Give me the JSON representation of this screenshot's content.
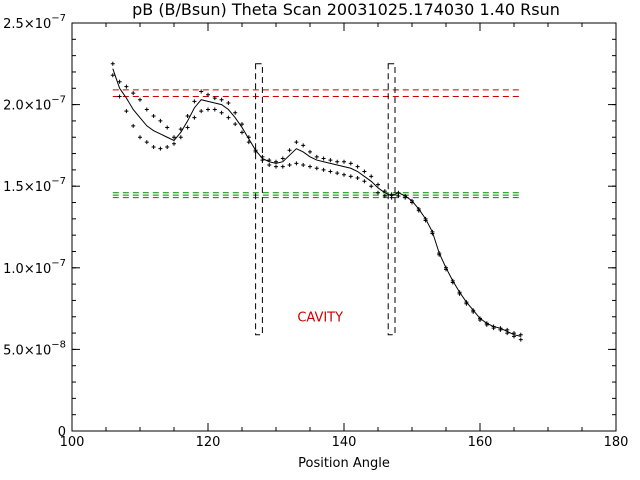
{
  "chart_data": {
    "type": "scatter",
    "title": "pB (B/Bsun) Theta Scan 20031025.174030 1.40 Rsun",
    "xlabel": "Position Angle",
    "ylabel": "",
    "xlim": [
      100,
      180
    ],
    "ylim": [
      0,
      2.5e-07
    ],
    "grid": false,
    "x_ticks": [
      {
        "value": 100,
        "label": "100"
      },
      {
        "value": 120,
        "label": "120"
      },
      {
        "value": 140,
        "label": "140"
      },
      {
        "value": 160,
        "label": "160"
      },
      {
        "value": 180,
        "label": "180"
      }
    ],
    "y_ticks": [
      {
        "value": 0,
        "label": "0"
      },
      {
        "value": 5e-08,
        "label": "5.0×10",
        "exp": "−8"
      },
      {
        "value": 1e-07,
        "label": "1.0×10",
        "exp": "−7"
      },
      {
        "value": 1.5e-07,
        "label": "1.5×10",
        "exp": "−7"
      },
      {
        "value": 2e-07,
        "label": "2.0×10",
        "exp": "−7"
      },
      {
        "value": 2.5e-07,
        "label": "2.5×10",
        "exp": "−7"
      }
    ],
    "series": [
      {
        "style": "points",
        "color": "#000000",
        "x": [
          106,
          107,
          108,
          109,
          110,
          111,
          112,
          113,
          114,
          115,
          116,
          117,
          118,
          119,
          120,
          121,
          122,
          123,
          124,
          125,
          126,
          127,
          128,
          129,
          130,
          131,
          132,
          133,
          134,
          135,
          136,
          137,
          138,
          139,
          140,
          141,
          142,
          143,
          144,
          145,
          146,
          147,
          148,
          149,
          150,
          151,
          152,
          153,
          154,
          155,
          156,
          157,
          158,
          159,
          160,
          161,
          162,
          163,
          164,
          165,
          166
        ],
        "y": [
          2.25e-07,
          2.14e-07,
          2.11e-07,
          2.07e-07,
          2.03e-07,
          1.97e-07,
          1.93e-07,
          1.9e-07,
          1.86e-07,
          1.8e-07,
          1.85e-07,
          1.93e-07,
          2.02e-07,
          2.08e-07,
          2.06e-07,
          2.04e-07,
          2.03e-07,
          2.01e-07,
          1.95e-07,
          1.88e-07,
          1.8e-07,
          1.72e-07,
          1.68e-07,
          1.66e-07,
          1.65e-07,
          1.67e-07,
          1.72e-07,
          1.77e-07,
          1.75e-07,
          1.71e-07,
          1.68e-07,
          1.67e-07,
          1.66e-07,
          1.65e-07,
          1.65e-07,
          1.64e-07,
          1.62e-07,
          1.59e-07,
          1.56e-07,
          1.51e-07,
          1.47e-07,
          1.45e-07,
          1.46e-07,
          1.44e-07,
          1.41e-07,
          1.36e-07,
          1.3e-07,
          1.22e-07,
          1.09e-07,
          1e-07,
          9.2e-08,
          8.5e-08,
          7.9e-08,
          7.4e-08,
          6.9e-08,
          6.6e-08,
          6.4e-08,
          6.3e-08,
          6.2e-08,
          6e-08,
          5.9e-08
        ]
      },
      {
        "style": "points",
        "color": "#000000",
        "x": [
          106,
          107,
          108,
          109,
          110,
          111,
          112,
          113,
          114,
          115,
          116,
          117,
          118,
          119,
          120,
          121,
          122,
          123,
          124,
          125,
          126,
          127,
          128,
          129,
          130,
          131,
          132,
          133,
          134,
          135,
          136,
          137,
          138,
          139,
          140,
          141,
          142,
          143,
          144,
          145,
          146,
          147,
          148,
          149,
          150,
          151,
          152,
          153,
          154,
          155,
          156,
          157,
          158,
          159,
          160,
          161,
          162,
          163,
          164,
          165,
          166
        ],
        "y": [
          2.18e-07,
          2.05e-07,
          1.96e-07,
          1.87e-07,
          1.8e-07,
          1.77e-07,
          1.74e-07,
          1.73e-07,
          1.74e-07,
          1.76e-07,
          1.8e-07,
          1.86e-07,
          1.92e-07,
          1.96e-07,
          1.97e-07,
          1.97e-07,
          1.95e-07,
          1.92e-07,
          1.88e-07,
          1.83e-07,
          1.77e-07,
          1.71e-07,
          1.66e-07,
          1.63e-07,
          1.62e-07,
          1.62e-07,
          1.63e-07,
          1.64e-07,
          1.63e-07,
          1.62e-07,
          1.61e-07,
          1.6e-07,
          1.59e-07,
          1.58e-07,
          1.57e-07,
          1.56e-07,
          1.55e-07,
          1.53e-07,
          1.5e-07,
          1.46e-07,
          1.44e-07,
          1.43e-07,
          1.44e-07,
          1.43e-07,
          1.4e-07,
          1.35e-07,
          1.29e-07,
          1.21e-07,
          1.08e-07,
          9.9e-08,
          9.1e-08,
          8.4e-08,
          7.8e-08,
          7.3e-08,
          6.8e-08,
          6.5e-08,
          6.3e-08,
          6.2e-08,
          6e-08,
          5.8e-08,
          5.6e-08
        ]
      },
      {
        "style": "line",
        "color": "#000000",
        "x": [
          106,
          107,
          108,
          109,
          110,
          111,
          112,
          113,
          114,
          115,
          116,
          117,
          118,
          119,
          120,
          121,
          122,
          123,
          124,
          125,
          126,
          127,
          128,
          129,
          130,
          131,
          132,
          133,
          134,
          135,
          136,
          137,
          138,
          139,
          140,
          141,
          142,
          143,
          144,
          145,
          146,
          147,
          148,
          149,
          150,
          151,
          152,
          153,
          154,
          155,
          156,
          157,
          158,
          159,
          160,
          161,
          162,
          163,
          164,
          165,
          166
        ],
        "y": [
          2.22e-07,
          2.1e-07,
          2.04e-07,
          1.97e-07,
          1.92e-07,
          1.87e-07,
          1.84e-07,
          1.82e-07,
          1.8e-07,
          1.78e-07,
          1.83e-07,
          1.9e-07,
          1.98e-07,
          2.03e-07,
          2.02e-07,
          2.01e-07,
          2e-07,
          1.97e-07,
          1.92e-07,
          1.86e-07,
          1.79e-07,
          1.72e-07,
          1.67e-07,
          1.65e-07,
          1.64e-07,
          1.65e-07,
          1.69e-07,
          1.73e-07,
          1.71e-07,
          1.68e-07,
          1.66e-07,
          1.65e-07,
          1.64e-07,
          1.63e-07,
          1.62e-07,
          1.61e-07,
          1.59e-07,
          1.56e-07,
          1.53e-07,
          1.49e-07,
          1.46e-07,
          1.44e-07,
          1.46e-07,
          1.44e-07,
          1.41e-07,
          1.36e-07,
          1.3e-07,
          1.22e-07,
          1.09e-07,
          1e-07,
          9.2e-08,
          8.5e-08,
          7.9e-08,
          7.4e-08,
          6.9e-08,
          6.6e-08,
          6.4e-08,
          6.3e-08,
          6.1e-08,
          5.9e-08,
          5.8e-08
        ]
      }
    ],
    "reference_lines": [
      {
        "y": 2.09e-07,
        "x_range": [
          106,
          166
        ],
        "color": "#cc0000",
        "style": "dashed"
      },
      {
        "y": 2.05e-07,
        "x_range": [
          106,
          166
        ],
        "color": "#cc0000",
        "style": "dashed"
      },
      {
        "y": 1.46e-07,
        "x_range": [
          106,
          166
        ],
        "color": "#008800",
        "style": "dashed"
      },
      {
        "y": 1.445e-07,
        "x_range": [
          106,
          166
        ],
        "color": "#008800",
        "style": "dashed"
      },
      {
        "y": 1.43e-07,
        "x_range": [
          106,
          166
        ],
        "color": "#008800",
        "style": "dashed"
      }
    ],
    "regions": [
      {
        "x_range": [
          127,
          128
        ],
        "y_range": [
          5.9e-08,
          2.25e-07
        ],
        "color": "#000000",
        "style": "dashed"
      },
      {
        "x_range": [
          146.5,
          147.5
        ],
        "y_range": [
          5.9e-08,
          2.25e-07
        ],
        "color": "#000000",
        "style": "dashed"
      }
    ],
    "annotations": [
      {
        "text": "CAVITY",
        "x": 136.5,
        "y": 6.7e-08,
        "color": "#cc0000"
      }
    ]
  }
}
